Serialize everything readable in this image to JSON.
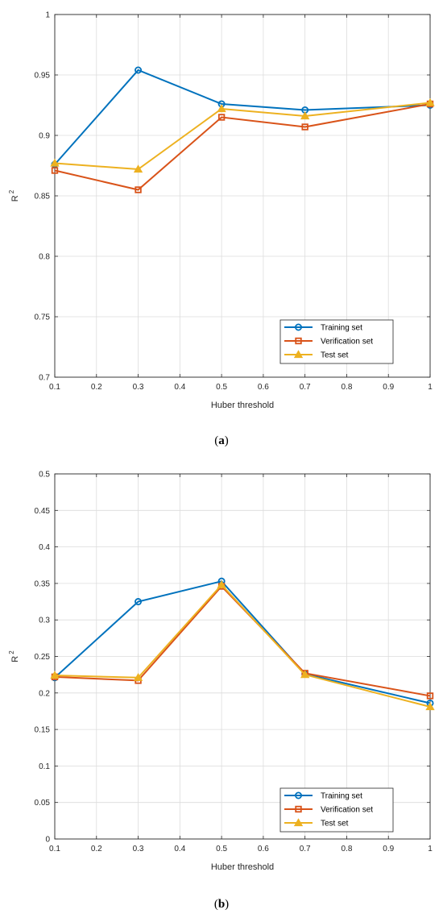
{
  "chart_data": [
    {
      "type": "line",
      "panel_label": "a",
      "xlabel": "Huber threshold",
      "ylabel": "R",
      "ylabel_sup": "2",
      "xlim": [
        0.1,
        1
      ],
      "ylim": [
        0.7,
        1
      ],
      "xticks": [
        "0.1",
        "0.2",
        "0.3",
        "0.4",
        "0.5",
        "0.6",
        "0.7",
        "0.8",
        "0.9",
        "1"
      ],
      "yticks": [
        "0.7",
        "0.75",
        "0.8",
        "0.85",
        "0.9",
        "0.95",
        "1"
      ],
      "grid": true,
      "legend_position": "bottom-right",
      "x": [
        0.1,
        0.3,
        0.5,
        0.7,
        1.0
      ],
      "series": [
        {
          "name": "Training set",
          "marker": "circle",
          "color": "#0072BD",
          "values": [
            0.876,
            0.954,
            0.926,
            0.921,
            0.925
          ]
        },
        {
          "name": "Verification set",
          "marker": "square",
          "color": "#D95319",
          "values": [
            0.871,
            0.855,
            0.915,
            0.907,
            0.926
          ]
        },
        {
          "name": "Test set",
          "marker": "triangle",
          "color": "#EDB120",
          "values": [
            0.877,
            0.872,
            0.922,
            0.916,
            0.927
          ]
        }
      ]
    },
    {
      "type": "line",
      "panel_label": "b",
      "xlabel": "Huber threshold",
      "ylabel": "R",
      "ylabel_sup": "2",
      "xlim": [
        0.1,
        1
      ],
      "ylim": [
        0,
        0.5
      ],
      "xticks": [
        "0.1",
        "0.2",
        "0.3",
        "0.4",
        "0.5",
        "0.6",
        "0.7",
        "0.8",
        "0.9",
        "1"
      ],
      "yticks": [
        "0",
        "0.05",
        "0.1",
        "0.15",
        "0.2",
        "0.25",
        "0.3",
        "0.35",
        "0.4",
        "0.45",
        "0.5"
      ],
      "grid": true,
      "legend_position": "bottom-right",
      "x": [
        0.1,
        0.3,
        0.5,
        0.7,
        1.0
      ],
      "series": [
        {
          "name": "Training set",
          "marker": "circle",
          "color": "#0072BD",
          "values": [
            0.221,
            0.325,
            0.353,
            0.226,
            0.186
          ]
        },
        {
          "name": "Verification set",
          "marker": "square",
          "color": "#D95319",
          "values": [
            0.222,
            0.217,
            0.346,
            0.227,
            0.196
          ]
        },
        {
          "name": "Test set",
          "marker": "triangle",
          "color": "#EDB120",
          "values": [
            0.224,
            0.221,
            0.348,
            0.225,
            0.181
          ]
        }
      ]
    }
  ]
}
